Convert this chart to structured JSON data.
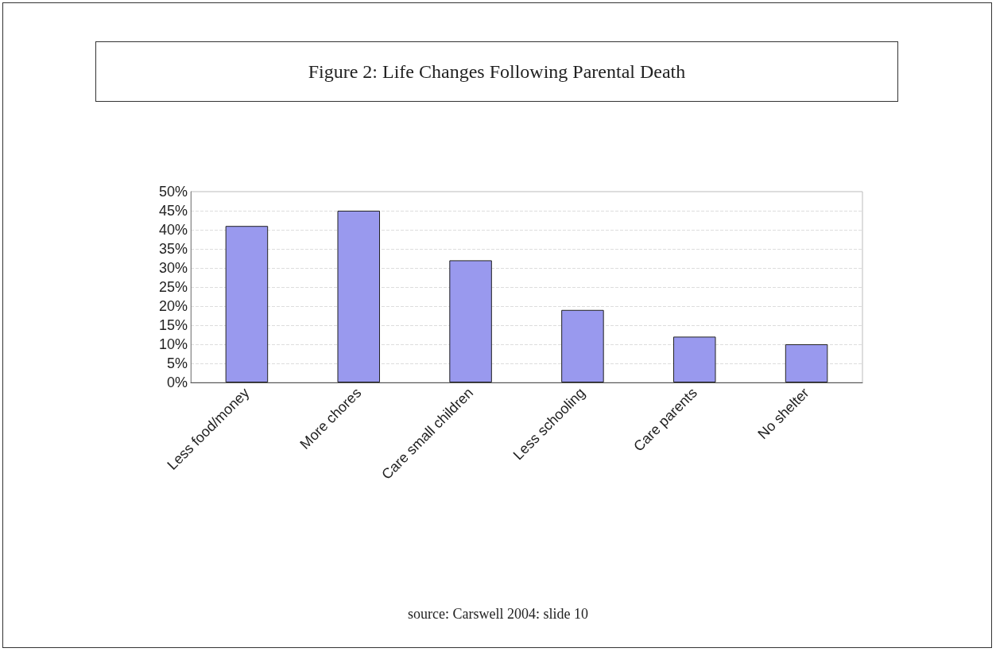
{
  "chart_data": {
    "type": "bar",
    "title": "Figure 2: Life Changes Following Parental Death",
    "categories": [
      "Less food/money",
      "More chores",
      "Care small children",
      "Less schooling",
      "Care parents",
      "No shelter"
    ],
    "values": [
      41,
      45,
      32,
      19,
      12,
      10
    ],
    "color": "#9999ee",
    "ylim": [
      0,
      50
    ],
    "yticks": [
      {
        "value": 0,
        "label": "0%"
      },
      {
        "value": 5,
        "label": "5%"
      },
      {
        "value": 10,
        "label": "10%"
      },
      {
        "value": 15,
        "label": "15%"
      },
      {
        "value": 20,
        "label": "20%"
      },
      {
        "value": 25,
        "label": "25%"
      },
      {
        "value": 30,
        "label": "30%"
      },
      {
        "value": 35,
        "label": "35%"
      },
      {
        "value": 40,
        "label": "40%"
      },
      {
        "value": 45,
        "label": "45%"
      },
      {
        "value": 50,
        "label": "50%"
      }
    ],
    "grid": "y",
    "annotations": [
      "source: Carswell 2004: slide 10"
    ]
  }
}
